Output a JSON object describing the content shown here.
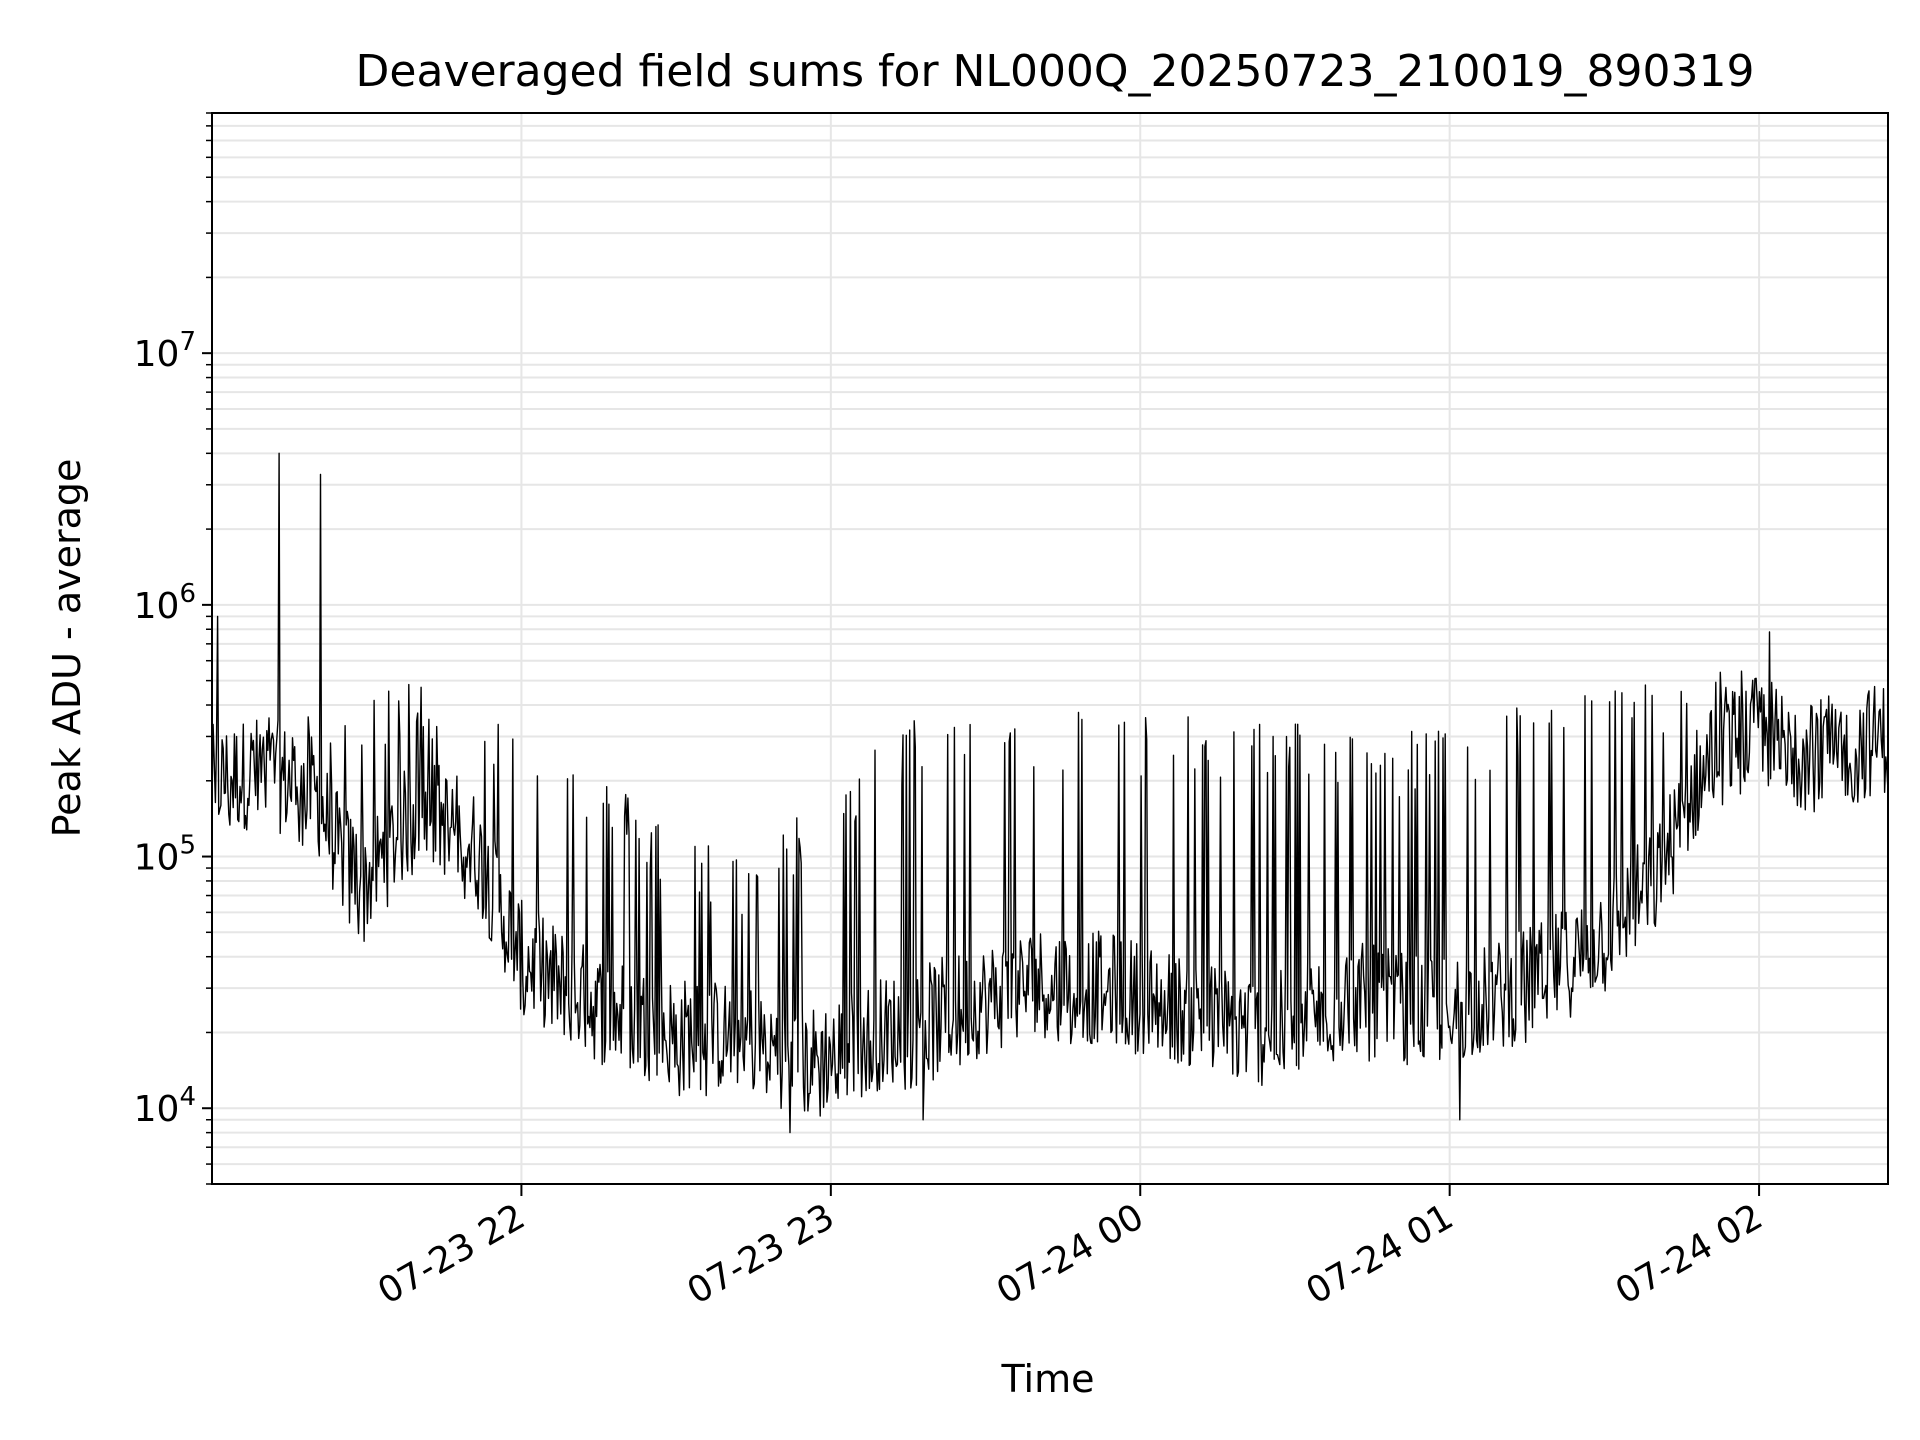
{
  "chart_data": {
    "type": "line",
    "title": "Deaveraged field sums for NL000Q_20250723_210019_890319",
    "xlabel": "Time",
    "ylabel": "Peak ADU - average",
    "yscale": "log",
    "ylim": [
      5000,
      90000000
    ],
    "xlim": [
      "2025-07-23 21:00",
      "2025-07-24 02:25"
    ],
    "grid": true,
    "line_color": "#000000",
    "grid_color": "#e6e6e6",
    "x_ticks": [
      {
        "value": "2025-07-23 22:00",
        "label": "07-23 22"
      },
      {
        "value": "2025-07-23 23:00",
        "label": "07-23 23"
      },
      {
        "value": "2025-07-24 00:00",
        "label": "07-24 00"
      },
      {
        "value": "2025-07-24 01:00",
        "label": "07-24 01"
      },
      {
        "value": "2025-07-24 02:00",
        "label": "07-24 02"
      }
    ],
    "y_ticks": [
      {
        "value": 10000,
        "base": "10",
        "exp": "4"
      },
      {
        "value": 100000,
        "base": "10",
        "exp": "5"
      },
      {
        "value": 1000000,
        "base": "10",
        "exp": "6"
      },
      {
        "value": 10000000,
        "base": "10",
        "exp": "7"
      }
    ],
    "series": [
      {
        "baseline": [
          [
            "2025-07-23 21:00",
            200000
          ],
          [
            "2025-07-23 21:10",
            220000
          ],
          [
            "2025-07-23 21:20",
            180000
          ],
          [
            "2025-07-23 21:25",
            100000
          ],
          [
            "2025-07-23 21:30",
            80000
          ],
          [
            "2025-07-23 21:40",
            160000
          ],
          [
            "2025-07-23 21:50",
            120000
          ],
          [
            "2025-07-23 22:00",
            40000
          ],
          [
            "2025-07-23 22:15",
            25000
          ],
          [
            "2025-07-23 22:30",
            20000
          ],
          [
            "2025-07-23 22:45",
            19000
          ],
          [
            "2025-07-23 22:55",
            15000
          ],
          [
            "2025-07-23 23:10",
            20000
          ],
          [
            "2025-07-23 23:25",
            25000
          ],
          [
            "2025-07-23 23:40",
            32000
          ],
          [
            "2025-07-23 23:55",
            30000
          ],
          [
            "2025-07-24 00:10",
            24000
          ],
          [
            "2025-07-24 00:25",
            20000
          ],
          [
            "2025-07-24 00:40",
            28000
          ],
          [
            "2025-07-24 00:55",
            24000
          ],
          [
            "2025-07-24 01:10",
            28000
          ],
          [
            "2025-07-24 01:25",
            40000
          ],
          [
            "2025-07-24 01:40",
            80000
          ],
          [
            "2025-07-24 01:50",
            250000
          ],
          [
            "2025-07-24 02:00",
            320000
          ],
          [
            "2025-07-24 02:10",
            250000
          ],
          [
            "2025-07-24 02:25",
            300000
          ]
        ],
        "upper_envelope": [
          [
            "2025-07-23 21:00",
            350000
          ],
          [
            "2025-07-23 21:20",
            380000
          ],
          [
            "2025-07-23 21:30",
            400000
          ],
          [
            "2025-07-23 21:40",
            550000
          ],
          [
            "2025-07-23 21:50",
            430000
          ],
          [
            "2025-07-23 22:00",
            330000
          ],
          [
            "2025-07-23 22:15",
            220000
          ],
          [
            "2025-07-23 22:30",
            130000
          ],
          [
            "2025-07-23 22:45",
            100000
          ],
          [
            "2025-07-23 23:00",
            200000
          ],
          [
            "2025-07-23 23:15",
            350000
          ],
          [
            "2025-07-23 23:30",
            420000
          ],
          [
            "2025-07-23 23:45",
            400000
          ],
          [
            "2025-07-24 00:00",
            380000
          ],
          [
            "2025-07-24 00:15",
            350000
          ],
          [
            "2025-07-24 00:30",
            360000
          ],
          [
            "2025-07-24 00:45",
            300000
          ],
          [
            "2025-07-24 01:00",
            340000
          ],
          [
            "2025-07-24 01:15",
            420000
          ],
          [
            "2025-07-24 01:30",
            480000
          ],
          [
            "2025-07-24 01:45",
            520000
          ],
          [
            "2025-07-24 02:00",
            600000
          ],
          [
            "2025-07-24 02:10",
            450000
          ],
          [
            "2025-07-24 02:25",
            420000
          ]
        ],
        "spikes": [
          [
            "2025-07-23 21:01",
            900000
          ],
          [
            "2025-07-23 21:13",
            4000000
          ],
          [
            "2025-07-23 21:21",
            3300000
          ],
          [
            "2025-07-23 22:52",
            8000
          ],
          [
            "2025-07-23 23:18",
            9000
          ],
          [
            "2025-07-24 01:02",
            9000
          ],
          [
            "2025-07-24 02:02",
            780000
          ]
        ]
      }
    ]
  }
}
